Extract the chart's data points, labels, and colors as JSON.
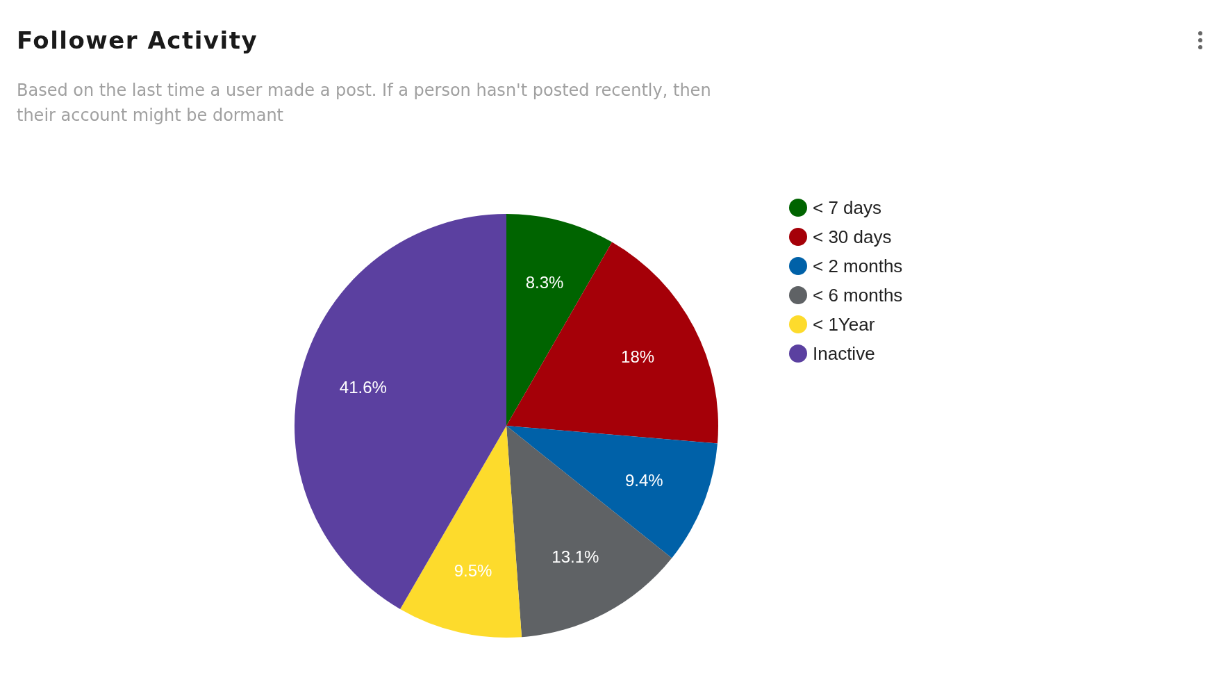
{
  "chart_data": {
    "type": "pie",
    "title": "Follower Activity",
    "subtitle": "Based on the last time a user made a post. If a person hasn't posted recently, then their account might be dormant",
    "categories": [
      "< 7 days",
      "< 30 days",
      "< 2 months",
      "< 6 months",
      "< 1Year",
      "Inactive"
    ],
    "values": [
      8.3,
      18,
      9.4,
      13.1,
      9.5,
      41.6
    ],
    "colors": [
      "#006400",
      "#a50008",
      "#0061a8",
      "#5f6265",
      "#fddb2c",
      "#5b40a0"
    ],
    "value_labels": [
      "8.3%",
      "18%",
      "9.4%",
      "13.1%",
      "9.5%",
      "41.6%"
    ],
    "legend": "right"
  }
}
